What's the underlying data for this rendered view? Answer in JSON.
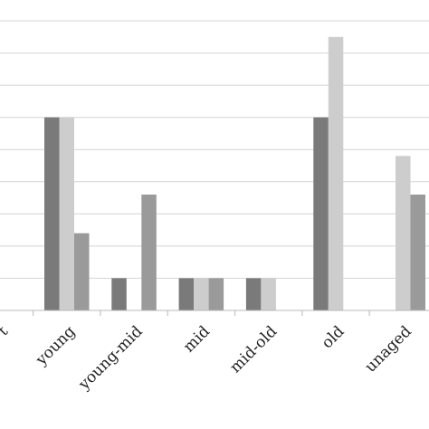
{
  "chart_data": {
    "type": "bar",
    "categories": [
      "t",
      "young",
      "young-mid",
      "mid",
      "mid-old",
      "old",
      "unaged"
    ],
    "series": [
      {
        "values": [
          0,
          6,
          1,
          1,
          1,
          6,
          0
        ],
        "color": "#7a7a7a"
      },
      {
        "values": [
          0,
          6,
          0,
          1,
          1,
          8.5,
          4.8
        ],
        "color": "#cdcdcd"
      },
      {
        "values": [
          0,
          2.4,
          3.6,
          1,
          0,
          0,
          3.6
        ],
        "color": "#9a9a9a"
      }
    ],
    "ylim": [
      0,
      9
    ],
    "grid": true,
    "gridline_count": 9,
    "title": "",
    "xlabel": "",
    "ylabel": "",
    "legend": "none"
  }
}
